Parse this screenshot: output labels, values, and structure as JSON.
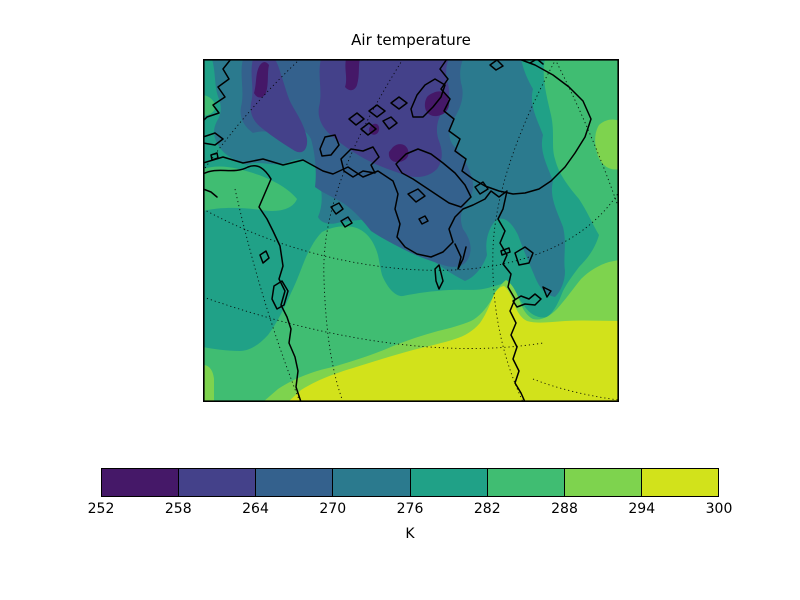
{
  "title": "Air temperature",
  "colorbar": {
    "unit_label": "K",
    "tick_labels": [
      "252",
      "258",
      "264",
      "270",
      "276",
      "282",
      "288",
      "294",
      "300"
    ],
    "border_color": "#000000"
  },
  "chart_data": {
    "type": "heatmap",
    "subtype": "filled-contour-map",
    "title": "Air temperature",
    "units": "K",
    "colorbar_label": "K",
    "colorbar_orientation": "horizontal",
    "levels": [
      252,
      258,
      264,
      270,
      276,
      282,
      288,
      294,
      300
    ],
    "palette": [
      "#451868",
      "#44418a",
      "#34618d",
      "#2b7a8e",
      "#20a187",
      "#40bd72",
      "#7ed34e",
      "#d2e21b"
    ],
    "legend_position": "bottom",
    "grid": "dotted graticule",
    "map_features": [
      "coastlines of North America, Canadian Arctic Archipelago and Greenland",
      "Hudson Bay",
      "Great Lakes",
      "dotted latitude-longitude graticule"
    ],
    "regions": [
      {
        "range_K": [
          252,
          258
        ],
        "color": "#451868",
        "where": "small patches over the high Arctic islands"
      },
      {
        "range_K": [
          258,
          264
        ],
        "color": "#44418a",
        "where": "Alaska-Yukon interior and central Canadian Arctic"
      },
      {
        "range_K": [
          264,
          270
        ],
        "color": "#34618d",
        "where": "ring around the Arctic core and southeast of Hudson Bay"
      },
      {
        "range_K": [
          270,
          276
        ],
        "color": "#2b7a8e",
        "where": "Hudson Bay, Greenland interior and Labrador"
      },
      {
        "range_K": [
          276,
          282
        ],
        "color": "#20a187",
        "where": "Bering Sea, central plains and northwest Atlantic"
      },
      {
        "range_K": [
          282,
          288
        ],
        "color": "#40bd72",
        "where": "southern Canada, Pacific coastal band and far North Atlantic"
      },
      {
        "range_K": [
          288,
          294
        ],
        "color": "#7ed34e",
        "where": "band across the northern United States and eastern Atlantic patch"
      },
      {
        "range_K": [
          294,
          300
        ],
        "color": "#d2e21b",
        "where": "southern United States and subtropical Atlantic"
      }
    ]
  }
}
